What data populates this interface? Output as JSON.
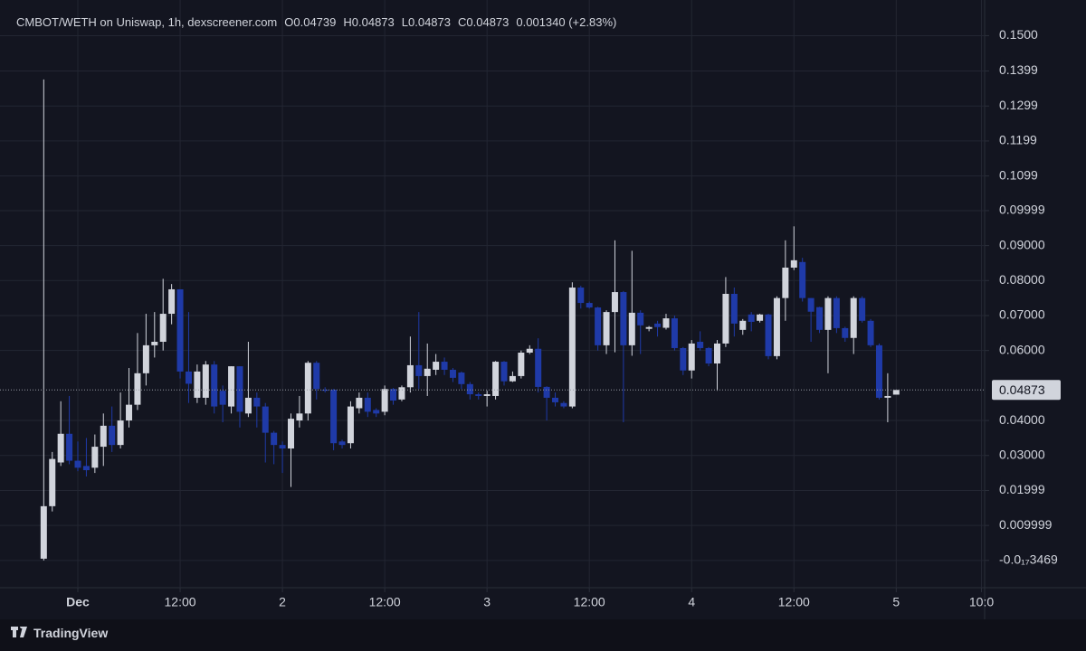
{
  "chart_data": {
    "type": "candlestick",
    "title": "CMBOT/WETH on Uniswap, 1h, dexscreener.com",
    "legend_items": [
      "O0.04739",
      "H0.04873",
      "L0.04873",
      "C0.04873",
      "0.001340 (+2.83%)"
    ],
    "up_color": "#d1d4dc",
    "down_color": "#1f3aa8",
    "x": [
      -4,
      -3,
      -2,
      -1,
      0,
      1,
      2,
      3,
      4,
      5,
      6,
      7,
      8,
      9,
      10,
      11,
      12,
      13,
      14,
      15,
      16,
      17,
      18,
      19,
      20,
      21,
      22,
      23,
      24,
      25,
      26,
      27,
      28,
      29,
      30,
      31,
      32,
      33,
      34,
      35,
      36,
      37,
      38,
      39,
      40,
      41,
      42,
      43,
      44,
      45,
      46,
      47,
      48,
      49,
      50,
      51,
      52,
      53,
      54,
      55,
      56,
      57,
      58,
      59,
      60,
      61,
      62,
      63,
      64,
      65,
      66,
      67,
      68,
      69,
      70,
      71,
      72,
      73,
      74,
      75,
      76,
      77,
      78,
      79,
      80,
      81,
      82,
      83,
      84,
      85,
      86,
      87,
      88,
      89,
      90,
      91,
      92,
      93,
      94,
      95,
      96
    ],
    "ohlc": [
      [
        0.0005,
        0.1375,
        0.0,
        0.0155
      ],
      [
        0.0155,
        0.031,
        0.014,
        0.029
      ],
      [
        0.028,
        0.0455,
        0.027,
        0.0362
      ],
      [
        0.0362,
        0.047,
        0.0275,
        0.0285
      ],
      [
        0.0285,
        0.034,
        0.0255,
        0.0265
      ],
      [
        0.027,
        0.035,
        0.024,
        0.0258
      ],
      [
        0.0265,
        0.036,
        0.025,
        0.0325
      ],
      [
        0.0325,
        0.042,
        0.027,
        0.0385
      ],
      [
        0.0385,
        0.044,
        0.031,
        0.033
      ],
      [
        0.033,
        0.048,
        0.032,
        0.04
      ],
      [
        0.04,
        0.055,
        0.038,
        0.0445
      ],
      [
        0.0445,
        0.065,
        0.043,
        0.0535
      ],
      [
        0.0535,
        0.0705,
        0.05,
        0.0615
      ],
      [
        0.0615,
        0.071,
        0.058,
        0.0625
      ],
      [
        0.0625,
        0.0805,
        0.06,
        0.0705
      ],
      [
        0.0705,
        0.079,
        0.0675,
        0.0775
      ],
      [
        0.0775,
        0.0775,
        0.052,
        0.054
      ],
      [
        0.054,
        0.071,
        0.045,
        0.0505
      ],
      [
        0.0465,
        0.056,
        0.045,
        0.054
      ],
      [
        0.0465,
        0.057,
        0.0445,
        0.056
      ],
      [
        0.056,
        0.057,
        0.042,
        0.044
      ],
      [
        0.0485,
        0.05,
        0.0395,
        0.0445
      ],
      [
        0.044,
        0.0555,
        0.042,
        0.0555
      ],
      [
        0.0555,
        0.0555,
        0.038,
        0.0425
      ],
      [
        0.042,
        0.0625,
        0.041,
        0.0465
      ],
      [
        0.0465,
        0.048,
        0.038,
        0.044
      ],
      [
        0.044,
        0.045,
        0.028,
        0.0365
      ],
      [
        0.0365,
        0.037,
        0.0275,
        0.033
      ],
      [
        0.033,
        0.034,
        0.025,
        0.032
      ],
      [
        0.032,
        0.042,
        0.021,
        0.0405
      ],
      [
        0.04,
        0.047,
        0.038,
        0.042
      ],
      [
        0.042,
        0.057,
        0.04,
        0.0565
      ],
      [
        0.0565,
        0.057,
        0.046,
        0.049
      ],
      [
        0.0488,
        0.0495,
        0.048,
        0.0485
      ],
      [
        0.0488,
        0.049,
        0.0315,
        0.0335
      ],
      [
        0.034,
        0.0345,
        0.032,
        0.033
      ],
      [
        0.0335,
        0.0455,
        0.032,
        0.044
      ],
      [
        0.0435,
        0.048,
        0.042,
        0.0465
      ],
      [
        0.0465,
        0.048,
        0.041,
        0.0425
      ],
      [
        0.043,
        0.0435,
        0.041,
        0.042
      ],
      [
        0.0425,
        0.05,
        0.0415,
        0.049
      ],
      [
        0.049,
        0.0493,
        0.0445,
        0.0457
      ],
      [
        0.046,
        0.05,
        0.0455,
        0.0495
      ],
      [
        0.0495,
        0.064,
        0.048,
        0.0558
      ],
      [
        0.0558,
        0.071,
        0.049,
        0.0527
      ],
      [
        0.0527,
        0.062,
        0.047,
        0.0548
      ],
      [
        0.0545,
        0.059,
        0.053,
        0.0568
      ],
      [
        0.0568,
        0.058,
        0.053,
        0.0545
      ],
      [
        0.0545,
        0.055,
        0.051,
        0.0522
      ],
      [
        0.0537,
        0.054,
        0.049,
        0.0504
      ],
      [
        0.0504,
        0.051,
        0.046,
        0.0475
      ],
      [
        0.0475,
        0.048,
        0.046,
        0.047
      ],
      [
        0.047,
        0.0485,
        0.044,
        0.0475
      ],
      [
        0.047,
        0.057,
        0.046,
        0.0568
      ],
      [
        0.0568,
        0.057,
        0.05,
        0.0512
      ],
      [
        0.0512,
        0.054,
        0.051,
        0.0527
      ],
      [
        0.0527,
        0.06,
        0.052,
        0.0594
      ],
      [
        0.0594,
        0.0615,
        0.059,
        0.0605
      ],
      [
        0.0605,
        0.0635,
        0.048,
        0.0496
      ],
      [
        0.0496,
        0.0498,
        0.04,
        0.0465
      ],
      [
        0.0465,
        0.048,
        0.044,
        0.0452
      ],
      [
        0.045,
        0.0455,
        0.0435,
        0.044
      ],
      [
        0.044,
        0.0795,
        0.0435,
        0.078
      ],
      [
        0.078,
        0.0785,
        0.072,
        0.0736
      ],
      [
        0.0736,
        0.074,
        0.072,
        0.0723
      ],
      [
        0.0723,
        0.0725,
        0.06,
        0.0615
      ],
      [
        0.0615,
        0.0715,
        0.059,
        0.071
      ],
      [
        0.071,
        0.0915,
        0.0595,
        0.0767
      ],
      [
        0.0767,
        0.077,
        0.0395,
        0.0615
      ],
      [
        0.0615,
        0.0885,
        0.0585,
        0.0708
      ],
      [
        0.0708,
        0.0715,
        0.059,
        0.0672
      ],
      [
        0.0662,
        0.067,
        0.0655,
        0.0667
      ],
      [
        0.0677,
        0.0685,
        0.064,
        0.0667
      ],
      [
        0.0665,
        0.0705,
        0.066,
        0.0692
      ],
      [
        0.0692,
        0.07,
        0.06,
        0.0607
      ],
      [
        0.0607,
        0.061,
        0.053,
        0.0543
      ],
      [
        0.0543,
        0.063,
        0.052,
        0.062
      ],
      [
        0.0625,
        0.0655,
        0.06,
        0.0607
      ],
      [
        0.0607,
        0.061,
        0.0555,
        0.0563
      ],
      [
        0.0563,
        0.063,
        0.0485,
        0.062
      ],
      [
        0.062,
        0.081,
        0.061,
        0.0762
      ],
      [
        0.0762,
        0.078,
        0.064,
        0.0677
      ],
      [
        0.0659,
        0.069,
        0.0645,
        0.0685
      ],
      [
        0.0703,
        0.071,
        0.0655,
        0.0682
      ],
      [
        0.0685,
        0.0705,
        0.068,
        0.0703
      ],
      [
        0.0703,
        0.0705,
        0.0575,
        0.0584
      ],
      [
        0.0584,
        0.0755,
        0.0575,
        0.075
      ],
      [
        0.075,
        0.0915,
        0.0685,
        0.0837
      ],
      [
        0.0837,
        0.0955,
        0.083,
        0.0858
      ],
      [
        0.0853,
        0.0865,
        0.074,
        0.075
      ],
      [
        0.075,
        0.075,
        0.0625,
        0.0711
      ],
      [
        0.0724,
        0.0725,
        0.065,
        0.0659
      ],
      [
        0.0659,
        0.0755,
        0.0535,
        0.075
      ],
      [
        0.075,
        0.0755,
        0.065,
        0.0664
      ],
      [
        0.0664,
        0.0668,
        0.0625,
        0.0636
      ],
      [
        0.0636,
        0.0755,
        0.059,
        0.075
      ],
      [
        0.075,
        0.0755,
        0.068,
        0.0685
      ],
      [
        0.0685,
        0.069,
        0.061,
        0.0615
      ],
      [
        0.0615,
        0.062,
        0.046,
        0.0465
      ],
      [
        0.0465,
        0.0535,
        0.0395,
        0.047
      ],
      [
        0.04739,
        0.04873,
        0.04873,
        0.04873
      ]
    ],
    "xlim": [
      -9.13,
      106.37
    ],
    "xticks": [
      {
        "value": 0,
        "label": "Dec"
      },
      {
        "value": 12,
        "label": "12:00"
      },
      {
        "value": 24,
        "label": "2"
      },
      {
        "value": 36,
        "label": "12:00"
      },
      {
        "value": 48,
        "label": "3"
      },
      {
        "value": 60,
        "label": "12:00"
      },
      {
        "value": 72,
        "label": "4"
      },
      {
        "value": 84,
        "label": "12:00"
      },
      {
        "value": 96,
        "label": "5"
      },
      {
        "value": 106,
        "label": "10:0"
      }
    ],
    "ylim": [
      -0.0078,
      0.1602
    ],
    "yticks": [
      {
        "value": 0.15,
        "label": "0.1500"
      },
      0.1399,
      0.1299,
      0.1199,
      0.1099,
      0.09999,
      {
        "value": 0.09,
        "label": "0.09000"
      },
      {
        "value": 0.08,
        "label": "0.08000"
      },
      {
        "value": 0.07,
        "label": "0.07000"
      },
      {
        "value": 0.06,
        "label": "0.06000"
      },
      {
        "value": 0.04,
        "label": "0.04000"
      },
      {
        "value": 0.03,
        "label": "0.03000"
      },
      0.01999,
      0.009999,
      {
        "value": -3.469e-18,
        "label": "-0.0₁₇3469"
      }
    ],
    "grid": true,
    "last_price": {
      "value": 0.04873,
      "label": "0.04873"
    }
  },
  "footer": {
    "brand": "TradingView"
  }
}
